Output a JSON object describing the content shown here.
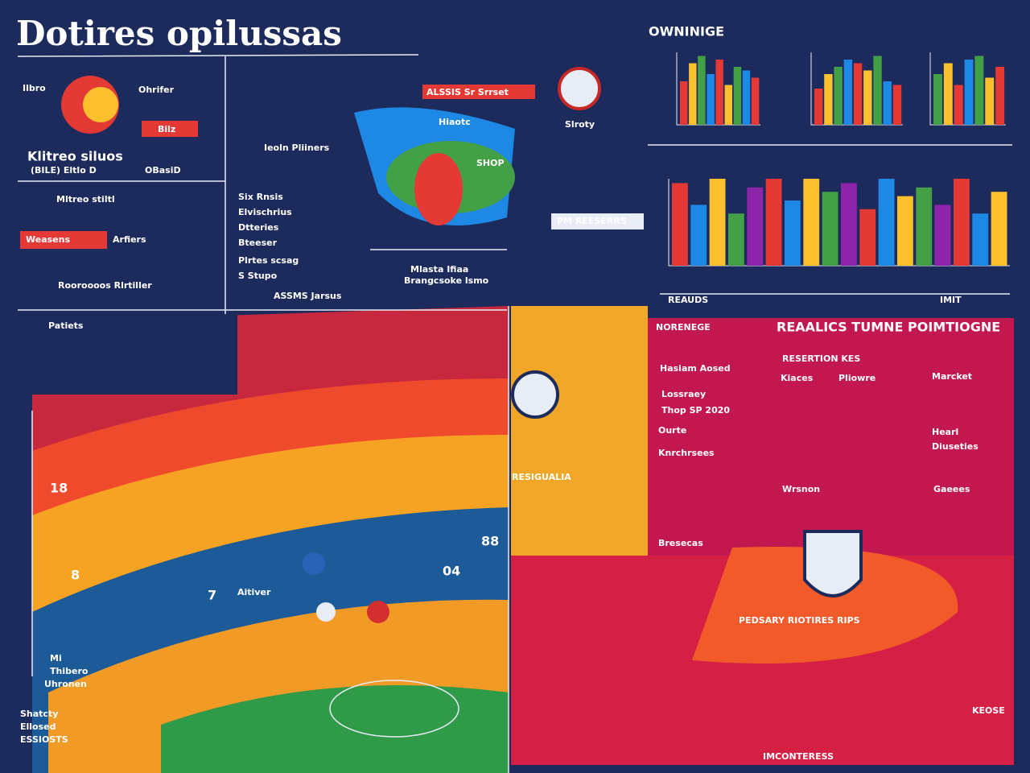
{
  "header": {
    "title": "Dotires opilussas",
    "right_title": "OWNINIGE"
  },
  "left_panel": {
    "labels": [
      "Ilbro",
      "Ohrifer",
      "Bilz",
      "Klitreo siluos",
      "(BILE) Eltlo D",
      "OBasiD",
      "Mltreo stiltl",
      "Weasens",
      "Arfiers",
      "Rooroooos Rlrtiller",
      "Patiets"
    ]
  },
  "center": {
    "labels": [
      "Ieoln Pliiners",
      "Six Rnsis",
      "Elvischrius",
      "Dtteries",
      "Bteeser",
      "Plrtes scsag",
      "S Stupo",
      "ASSMS Jarsus",
      "Mlasta Ifiaa",
      "Brangcsoke lsmo",
      "ALSSIS Sr Srrset",
      "Hiaotc",
      "Slroty",
      "SHOP",
      "PM REESERRS"
    ]
  },
  "bar_panels": [
    {
      "ylim": [
        0,
        100
      ],
      "colors": [
        "#e53935",
        "#fbc02d",
        "#43a047",
        "#1e88e5"
      ],
      "values": [
        60,
        85,
        95,
        70,
        90,
        55,
        80,
        75,
        65
      ]
    },
    {
      "ylim": [
        0,
        100
      ],
      "colors": [
        "#e53935",
        "#fbc02d",
        "#43a047",
        "#1e88e5"
      ],
      "values": [
        50,
        70,
        80,
        90,
        85,
        75,
        95,
        60,
        55
      ]
    },
    {
      "ylim": [
        0,
        100
      ],
      "colors": [
        "#43a047",
        "#fbc02d",
        "#e53935",
        "#1e88e5"
      ],
      "values": [
        70,
        85,
        55,
        90,
        95,
        65,
        80
      ]
    },
    {
      "ylim": [
        0,
        100
      ],
      "colors": [
        "#e53935",
        "#1e88e5",
        "#fbc02d",
        "#43a047",
        "#8e24aa"
      ],
      "values": [
        95,
        70,
        100,
        60,
        90,
        100,
        75,
        100,
        85,
        95,
        65,
        100,
        80,
        90,
        70,
        100,
        60,
        85
      ]
    }
  ],
  "right": {
    "labels": [
      "REAUDS",
      "IMIT",
      "NORENEGE",
      "REAALICS TUMNE POIMTIOGNE",
      "RESERTION KES",
      "Kiaces",
      "Pliowre",
      "Marcket",
      "Hasiam Aosed",
      "Lossraey",
      "Thop SP 2020",
      "Ourte",
      "Knrchrsees",
      "Bresecas",
      "Wrsnon",
      "Hearl",
      "Diuseties",
      "Gaeees",
      "PEDSARY RIOTIRES RIPS",
      "KEOSE"
    ]
  },
  "court": {
    "labels": [
      "Mi",
      "Thibero",
      "Uhronen",
      "Shatcty",
      "Ellosed",
      "ESSIOSTS",
      "RESIGUALIA",
      "Aitiver"
    ],
    "scores": [
      "88",
      "04",
      "18",
      "8",
      "7"
    ]
  },
  "footer": {
    "label": "IMCONTERESS"
  }
}
